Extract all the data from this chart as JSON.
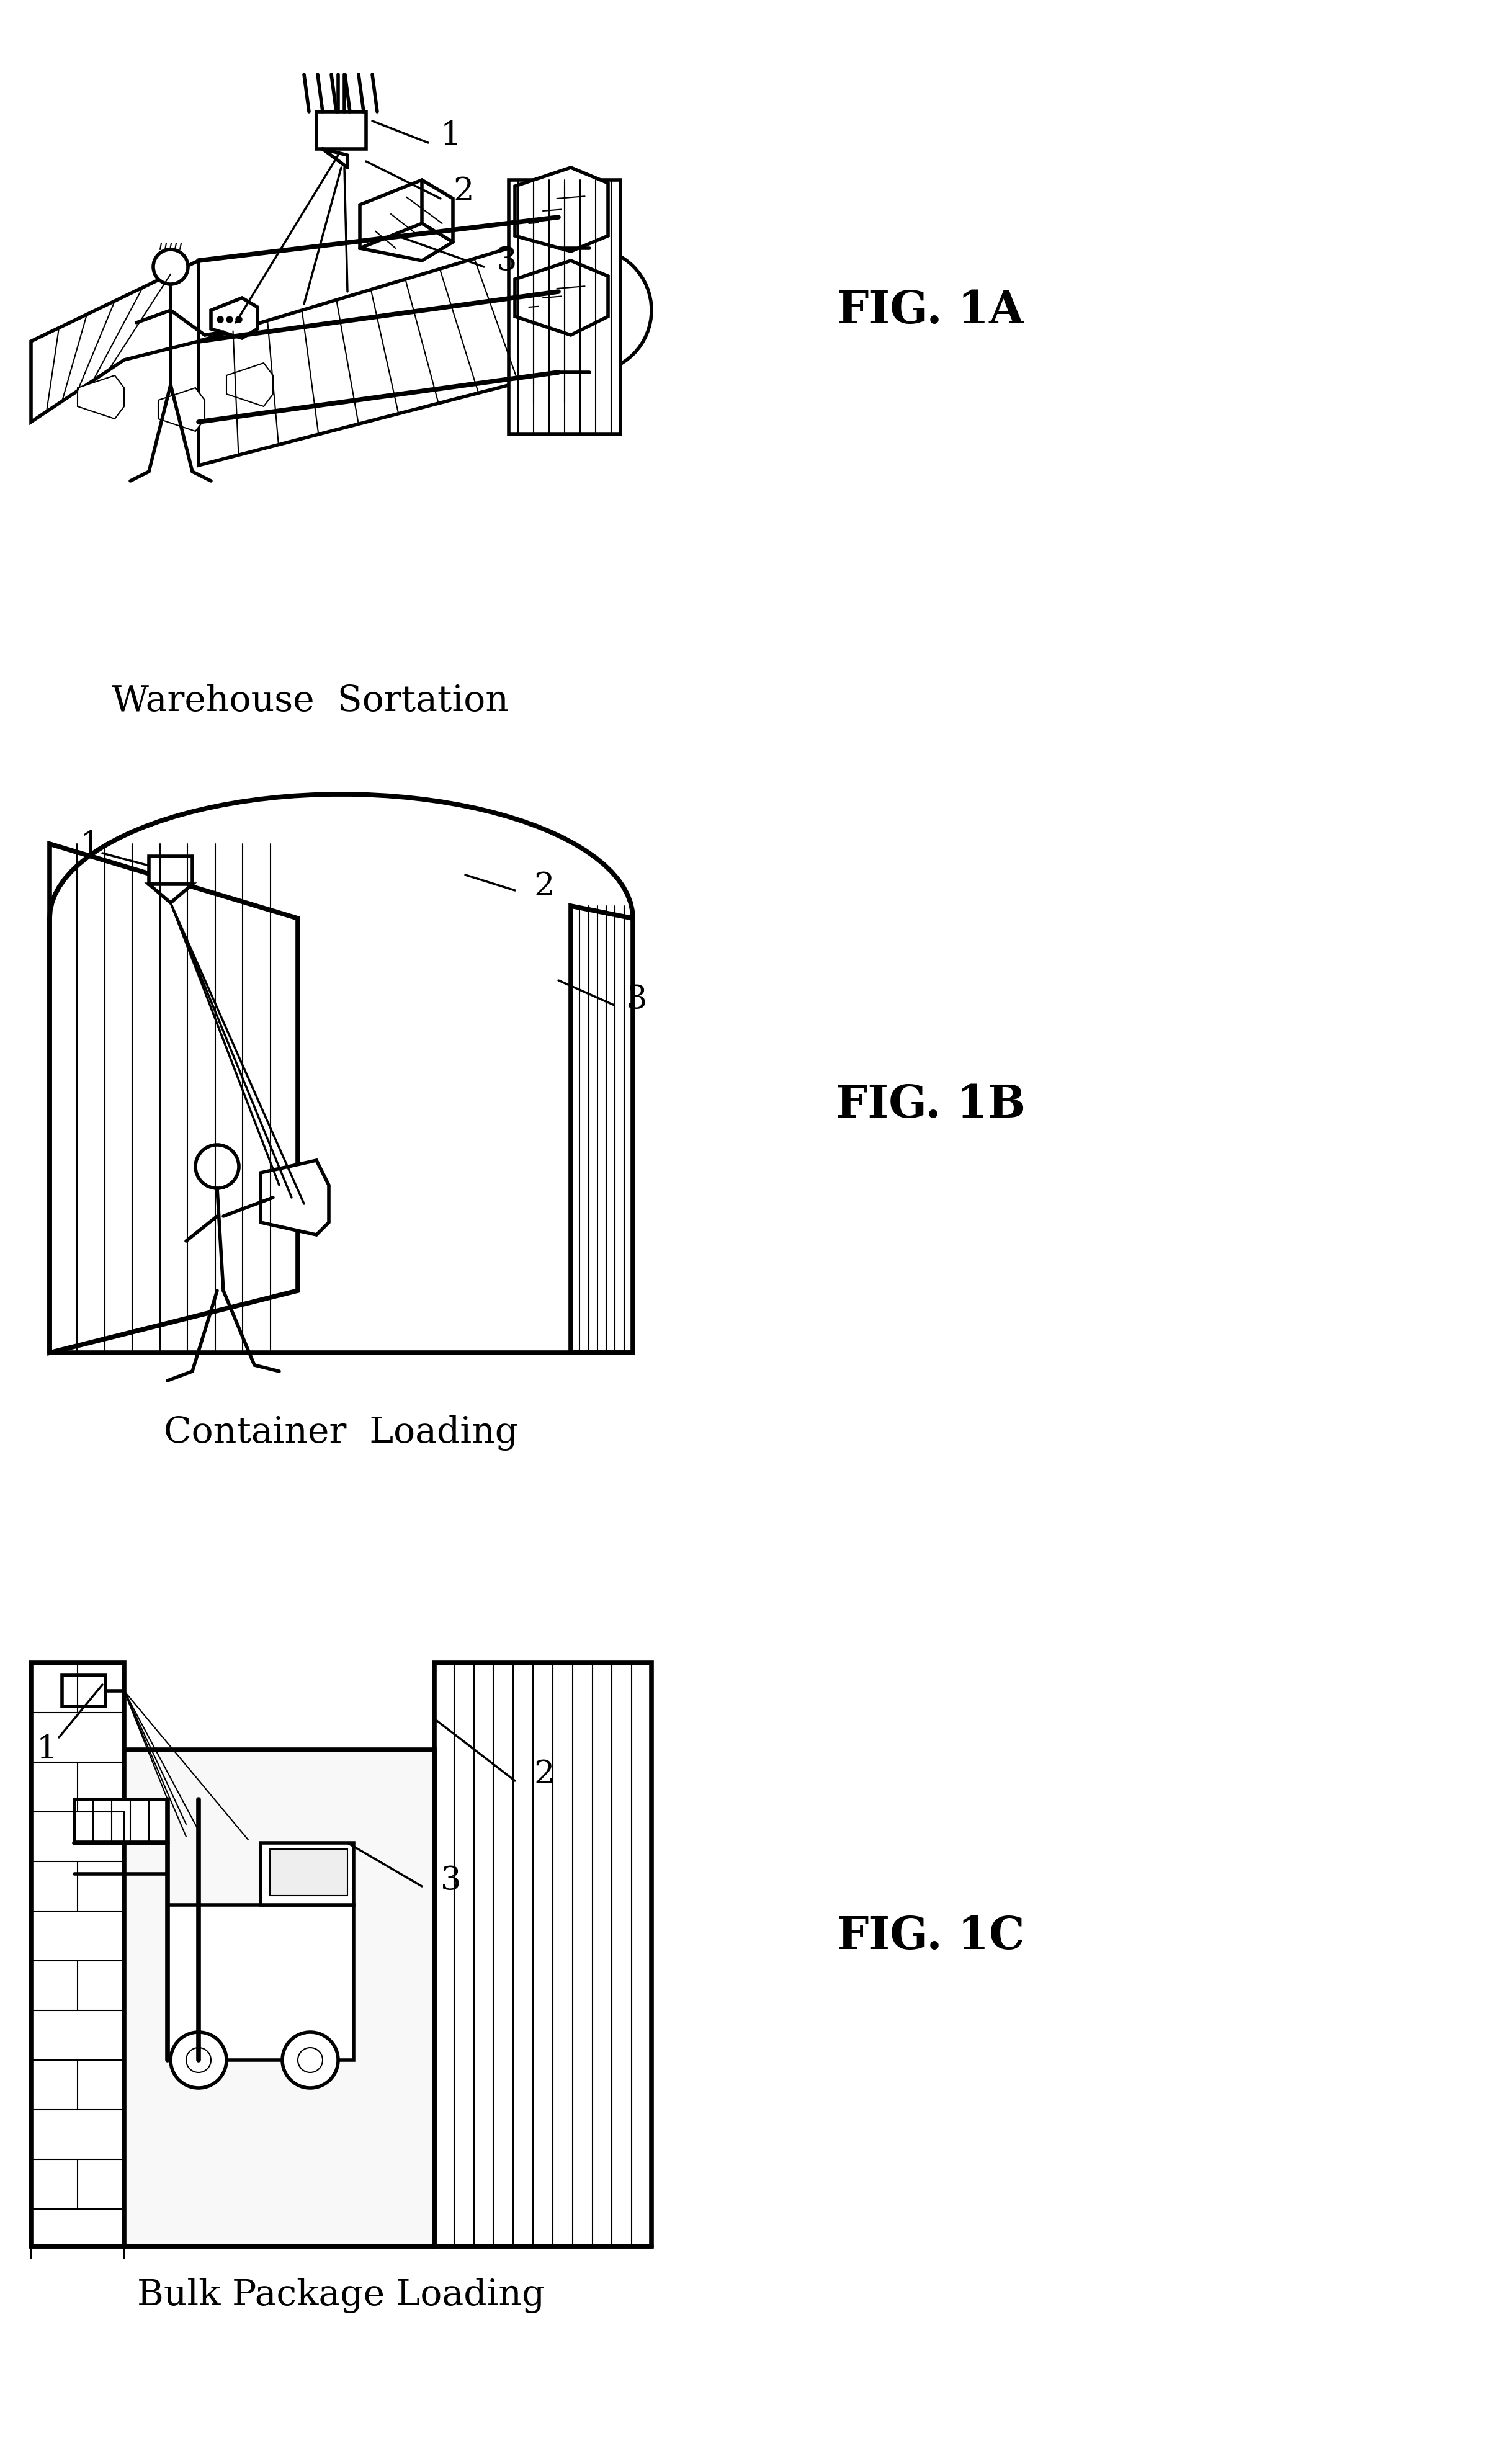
{
  "bg_color": "#ffffff",
  "fig_width": 24.16,
  "fig_height": 39.71,
  "fig1a_label": "FIG. 1A",
  "fig1b_label": "FIG. 1B",
  "fig1c_label": "FIG. 1C",
  "caption1": "Warehouse  Sortation",
  "caption2": "Container  Loading",
  "caption3": "Bulk Package Loading",
  "label1": "1",
  "label2": "2",
  "label3": "3",
  "line_color": "#000000",
  "line_width": 2.5,
  "text_color": "#000000"
}
